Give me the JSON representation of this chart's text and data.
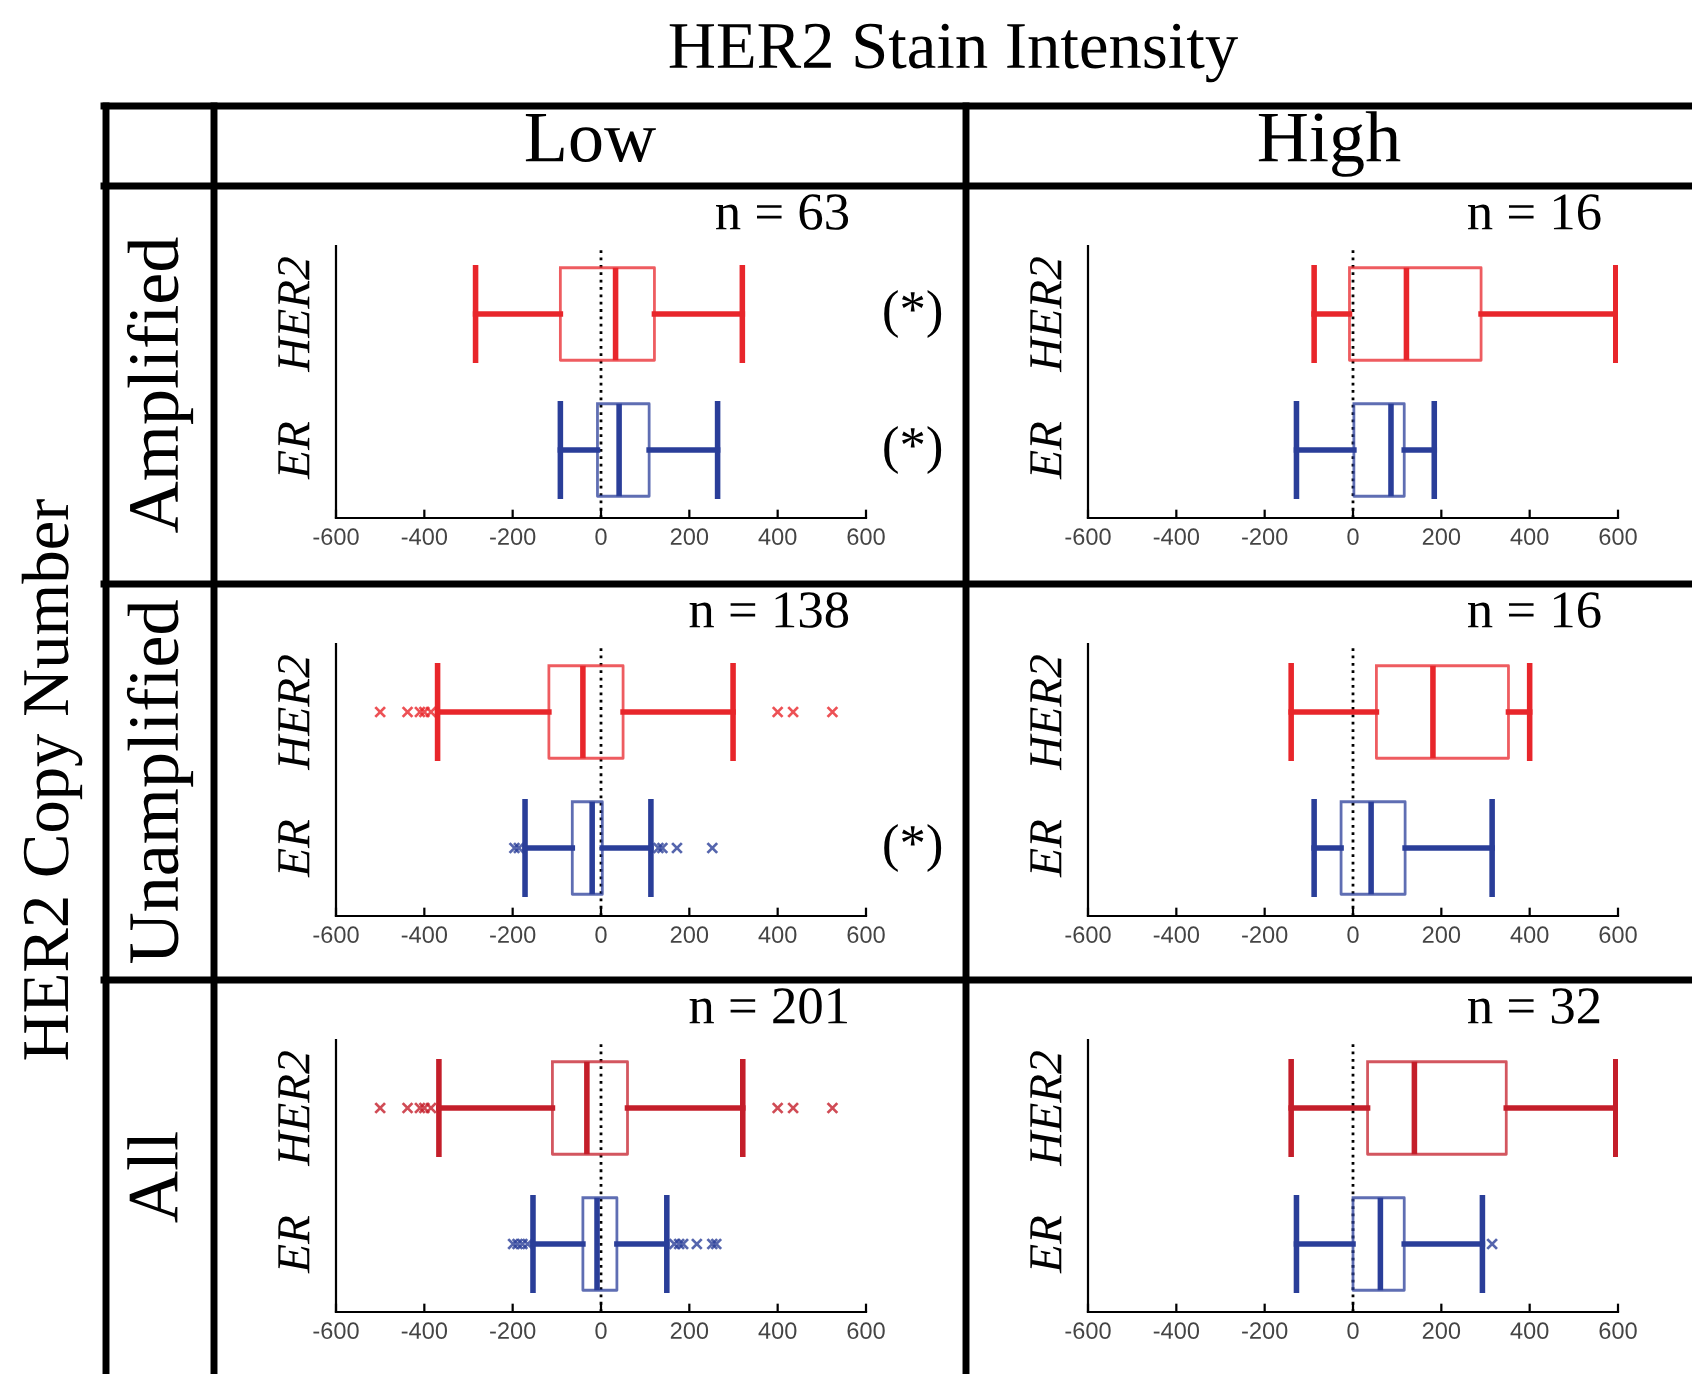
{
  "chart_data": [
    {
      "type": "box",
      "orientation": "horizontal",
      "categories": [
        "HER2",
        "ER"
      ],
      "colors": [
        "#e8262b",
        "#2a3e99"
      ],
      "xlim": [
        -600,
        600
      ],
      "xticks": [
        -600,
        -400,
        -200,
        0,
        200,
        400,
        600
      ],
      "boxes": [
        {
          "low": -284,
          "q1": -92,
          "median": 33,
          "q3": 121,
          "high": 320
        },
        {
          "low": -92,
          "q1": -8,
          "median": 41,
          "q3": 109,
          "high": 264
        }
      ],
      "ref_lines": [
        {
          "axis": "x",
          "value": 0,
          "color": "#000000",
          "line_style": "dotted"
        }
      ],
      "annotations": [
        "n = 63",
        "(*)",
        "(*)"
      ]
    },
    {
      "type": "box",
      "orientation": "horizontal",
      "categories": [
        "HER2",
        "ER"
      ],
      "colors": [
        "#e8262b",
        "#2a3e99"
      ],
      "xlim": [
        -600,
        600
      ],
      "xticks": [
        -600,
        -400,
        -200,
        0,
        200,
        400,
        600
      ],
      "boxes": [
        {
          "low": -88,
          "q1": -8,
          "median": 121,
          "q3": 290,
          "high": 595
        },
        {
          "low": -128,
          "q1": 2,
          "median": 86,
          "q3": 116,
          "high": 184
        }
      ],
      "ref_lines": [
        {
          "axis": "x",
          "value": 0,
          "color": "#000000",
          "line_style": "dotted"
        }
      ],
      "annotations": [
        "n = 16"
      ]
    },
    {
      "type": "box",
      "orientation": "horizontal",
      "categories": [
        "HER2",
        "ER"
      ],
      "colors": [
        "#e8262b",
        "#2a3e99"
      ],
      "xlim": [
        -600,
        600
      ],
      "xticks": [
        -600,
        -400,
        -200,
        0,
        200,
        400,
        600
      ],
      "boxes": [
        {
          "low": -370,
          "q1": -118,
          "median": -41,
          "q3": 50,
          "high": 299,
          "outliers": [
            -500,
            -438,
            -410,
            -400,
            -385,
            400,
            435,
            524
          ]
        },
        {
          "low": -172,
          "q1": -65,
          "median": -20,
          "q3": 3,
          "high": 113,
          "outliers": [
            -196,
            -186,
            130,
            139,
            172,
            252
          ]
        }
      ],
      "ref_lines": [
        {
          "axis": "x",
          "value": 0,
          "color": "#000000",
          "line_style": "dotted"
        }
      ],
      "annotations": [
        "n = 138",
        null,
        "(*)"
      ]
    },
    {
      "type": "box",
      "orientation": "horizontal",
      "categories": [
        "HER2",
        "ER"
      ],
      "colors": [
        "#e8262b",
        "#2a3e99"
      ],
      "xlim": [
        -600,
        600
      ],
      "xticks": [
        -600,
        -400,
        -200,
        0,
        200,
        400,
        600
      ],
      "boxes": [
        {
          "low": -140,
          "q1": 53,
          "median": 181,
          "q3": 352,
          "high": 400
        },
        {
          "low": -88,
          "q1": -27,
          "median": 41,
          "q3": 118,
          "high": 315
        }
      ],
      "ref_lines": [
        {
          "axis": "x",
          "value": 0,
          "color": "#000000",
          "line_style": "dotted"
        }
      ],
      "annotations": [
        "n = 16"
      ]
    },
    {
      "type": "box",
      "orientation": "horizontal",
      "categories": [
        "HER2",
        "ER"
      ],
      "colors": [
        "#c41e2a",
        "#2a3e99"
      ],
      "xlim": [
        -600,
        600
      ],
      "xticks": [
        -600,
        -400,
        -200,
        0,
        200,
        400,
        600
      ],
      "boxes": [
        {
          "low": -367,
          "q1": -110,
          "median": -32,
          "q3": 60,
          "high": 321,
          "outliers": [
            -500,
            -438,
            -410,
            -400,
            -385,
            400,
            435,
            524
          ]
        },
        {
          "low": -154,
          "q1": -41,
          "median": -9,
          "q3": 36,
          "high": 149,
          "outliers": [
            -199,
            -189,
            -178,
            -166,
            166,
            177,
            186,
            217,
            252,
            261
          ]
        }
      ],
      "ref_lines": [
        {
          "axis": "x",
          "value": 0,
          "color": "#000000",
          "line_style": "dotted"
        }
      ],
      "annotations": [
        "n = 201"
      ]
    },
    {
      "type": "box",
      "orientation": "horizontal",
      "categories": [
        "HER2",
        "ER"
      ],
      "colors": [
        "#c41e2a",
        "#2a3e99"
      ],
      "xlim": [
        -600,
        600
      ],
      "xticks": [
        -600,
        -400,
        -200,
        0,
        200,
        400,
        600
      ],
      "boxes": [
        {
          "low": -140,
          "q1": 33,
          "median": 139,
          "q3": 347,
          "high": 595
        },
        {
          "low": -128,
          "q1": 0,
          "median": 62,
          "q3": 116,
          "high": 293,
          "outliers": [
            315
          ]
        }
      ],
      "ref_lines": [
        {
          "axis": "x",
          "value": 0,
          "color": "#000000",
          "line_style": "dotted"
        }
      ],
      "annotations": [
        "n = 32"
      ]
    },
    {
      "type": "other",
      "title": "HER2 Stain Intensity",
      "ylabel": "HER2 Copy Number",
      "annotations": [
        "Low",
        "High",
        "Amplified",
        "Unamplified",
        "All"
      ]
    }
  ]
}
